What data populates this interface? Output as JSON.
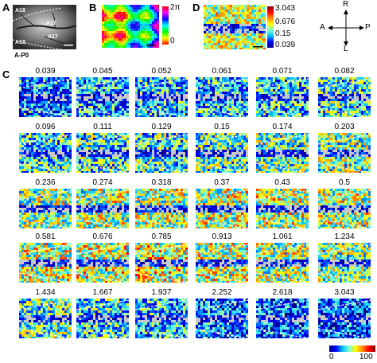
{
  "panels": {
    "a": {
      "letter": "A",
      "area_labels": [
        "A18",
        "A17",
        "A17",
        "A18"
      ],
      "bottom_label": "A-P0"
    },
    "b": {
      "letter": "B",
      "colorbar_ticks": [
        "2π",
        "0"
      ]
    },
    "d": {
      "letter": "D",
      "colorbar_ticks": [
        "3.043",
        "0.676",
        "0.15",
        "0.039"
      ]
    },
    "compass": {
      "up": "R",
      "down": "L",
      "left": "A",
      "right": "P"
    },
    "c": {
      "letter": "C",
      "frequencies": [
        "0.039",
        "0.045",
        "0.052",
        "0.061",
        "0.071",
        "0.082",
        "0.096",
        "0.111",
        "0.129",
        "0.15",
        "0.174",
        "0.203",
        "0.236",
        "0.274",
        "0.318",
        "0.37",
        "0.43",
        "0.5",
        "0.581",
        "0.676",
        "0.785",
        "0.913",
        "1.061",
        "1.234",
        "1.434",
        "1.667",
        "1.937",
        "2.252",
        "2.618",
        "3.043"
      ],
      "response_levels": [
        0.22,
        0.28,
        0.3,
        0.32,
        0.35,
        0.4,
        0.38,
        0.4,
        0.42,
        0.45,
        0.48,
        0.52,
        0.55,
        0.58,
        0.6,
        0.62,
        0.62,
        0.6,
        0.62,
        0.65,
        0.65,
        0.62,
        0.58,
        0.52,
        0.45,
        0.38,
        0.3,
        0.22,
        0.15,
        0.1
      ],
      "colorbar_ticks": [
        "0",
        "100"
      ]
    }
  }
}
